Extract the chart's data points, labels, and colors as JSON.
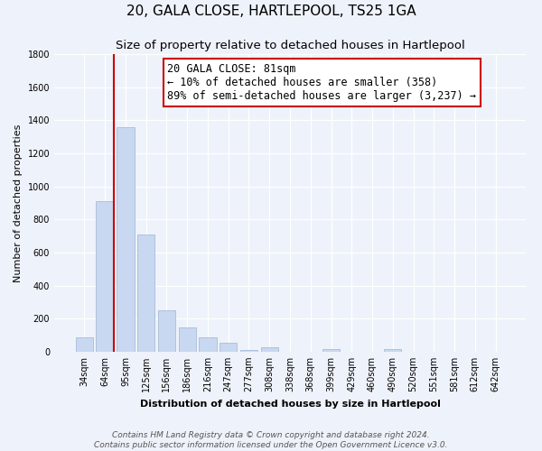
{
  "title": "20, GALA CLOSE, HARTLEPOOL, TS25 1GA",
  "subtitle": "Size of property relative to detached houses in Hartlepool",
  "xlabel": "Distribution of detached houses by size in Hartlepool",
  "ylabel": "Number of detached properties",
  "categories": [
    "34sqm",
    "64sqm",
    "95sqm",
    "125sqm",
    "156sqm",
    "186sqm",
    "216sqm",
    "247sqm",
    "277sqm",
    "308sqm",
    "338sqm",
    "368sqm",
    "399sqm",
    "429sqm",
    "460sqm",
    "490sqm",
    "520sqm",
    "551sqm",
    "581sqm",
    "612sqm",
    "642sqm"
  ],
  "values": [
    90,
    910,
    1360,
    710,
    250,
    145,
    90,
    55,
    10,
    30,
    0,
    0,
    15,
    0,
    0,
    15,
    0,
    0,
    0,
    0,
    0
  ],
  "bar_color": "#c8d8f0",
  "bar_edge_color": "#a8bcd8",
  "marker_label": "20 GALA CLOSE: 81sqm",
  "annotation_line1": "← 10% of detached houses are smaller (358)",
  "annotation_line2": "89% of semi-detached houses are larger (3,237) →",
  "annotation_box_color": "#ffffff",
  "annotation_box_edge": "#cc0000",
  "marker_line_color": "#cc0000",
  "ylim": [
    0,
    1800
  ],
  "yticks": [
    0,
    200,
    400,
    600,
    800,
    1000,
    1200,
    1400,
    1600,
    1800
  ],
  "footer_line1": "Contains HM Land Registry data © Crown copyright and database right 2024.",
  "footer_line2": "Contains public sector information licensed under the Open Government Licence v3.0.",
  "background_color": "#eef2fa",
  "title_fontsize": 11,
  "subtitle_fontsize": 9.5,
  "axis_fontsize": 8,
  "tick_fontsize": 7,
  "footer_fontsize": 6.5,
  "annotation_fontsize": 8.5
}
